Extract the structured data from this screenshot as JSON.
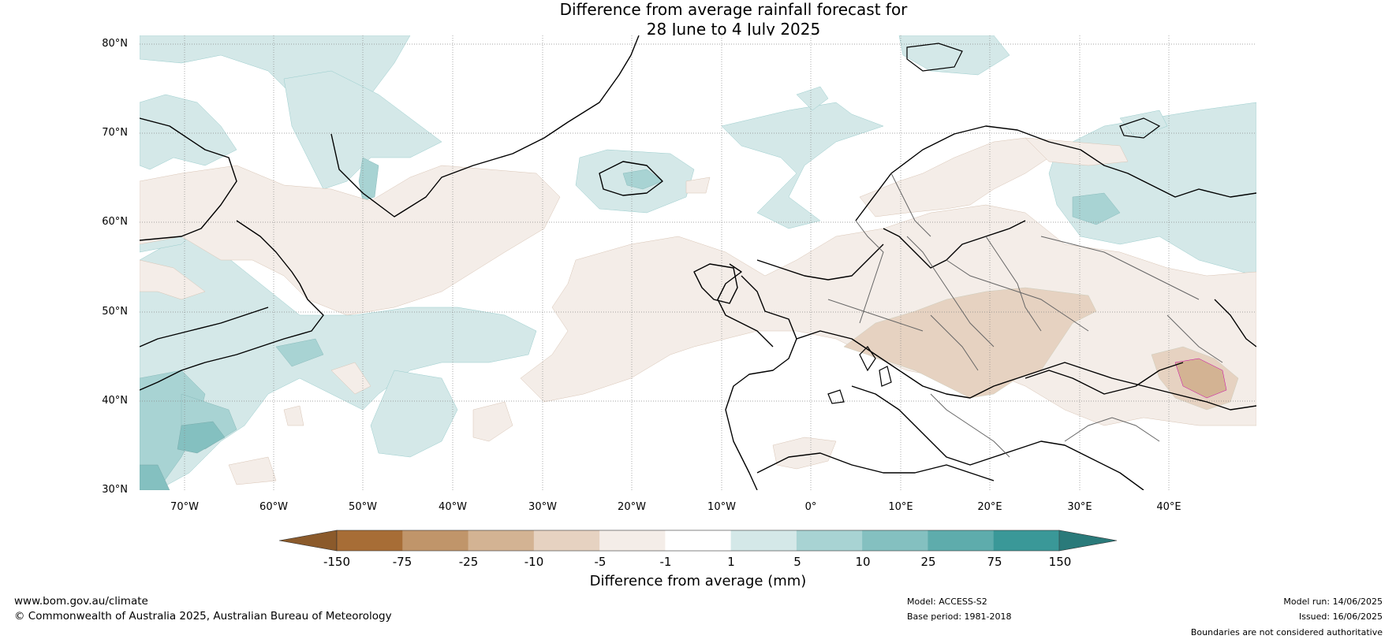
{
  "title": {
    "line1": "Difference from average rainfall forecast for",
    "line2": "28 June to 4 July 2025"
  },
  "map": {
    "lat_labels": [
      "80°N",
      "70°N",
      "60°N",
      "50°N",
      "40°N",
      "30°N"
    ],
    "lon_labels": [
      "70°W",
      "60°W",
      "50°W",
      "40°W",
      "30°W",
      "20°W",
      "10°W",
      "0°",
      "10°E",
      "20°E",
      "30°E",
      "40°E"
    ],
    "lat_range": [
      30,
      81
    ],
    "lon_range": [
      -75,
      50
    ]
  },
  "colorbar": {
    "ticks": [
      "-150",
      "-75",
      "-25",
      "-10",
      "-5",
      "-1",
      "1",
      "5",
      "10",
      "25",
      "75",
      "150"
    ],
    "colors": [
      "#a76d36",
      "#c0956a",
      "#d3b393",
      "#e6d2c1",
      "#f4ede8",
      "#ffffff",
      "#d4e8e8",
      "#a8d3d3",
      "#84c0c0",
      "#5eacac",
      "#3a9898"
    ],
    "extend_low_color": "#8b5a2b",
    "extend_high_color": "#2a7a7a",
    "label": "Difference from average (mm)"
  },
  "footer": {
    "website": "www.bom.gov.au/climate",
    "copyright": "© Commonwealth of Australia 2025, Australian Bureau of Meteorology",
    "model": "Model: ACCESS-S2",
    "base_period": "Base period: 1981-2018",
    "model_run": "Model run: 14/06/2025",
    "issued": "Issued: 16/06/2025",
    "disclaimer": "Boundaries are not considered authoritative"
  }
}
